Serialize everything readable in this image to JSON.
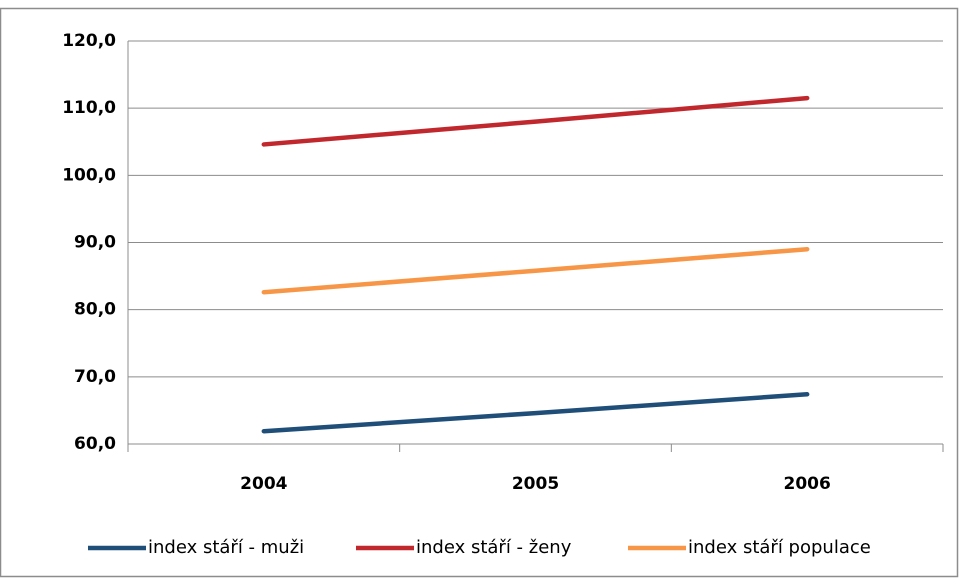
{
  "chart_data": {
    "type": "line",
    "categories": [
      "2004",
      "2005",
      "2006"
    ],
    "series": [
      {
        "name": "index stáří - muži",
        "color": "#1f4e79",
        "values": [
          61.9,
          64.6,
          67.4
        ]
      },
      {
        "name": "index stáří - ženy",
        "color": "#c0282d",
        "values": [
          104.6,
          108.0,
          111.5
        ]
      },
      {
        "name": "index stáří populace",
        "color": "#f79646",
        "values": [
          82.6,
          85.8,
          89.0
        ]
      }
    ],
    "ylim": [
      60,
      120
    ],
    "yticks": [
      {
        "value": 60,
        "label": "60,0"
      },
      {
        "value": 70,
        "label": "70,0"
      },
      {
        "value": 80,
        "label": "80,0"
      },
      {
        "value": 90,
        "label": "90,0"
      },
      {
        "value": 100,
        "label": "100,0"
      },
      {
        "value": 110,
        "label": "110,0"
      },
      {
        "value": 120,
        "label": "120,0"
      }
    ],
    "grid": true,
    "legend": "bottom"
  }
}
